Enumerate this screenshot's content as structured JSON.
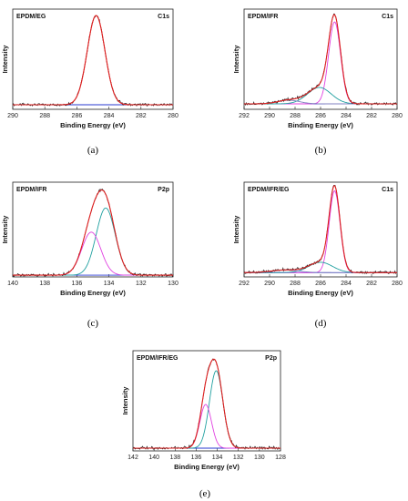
{
  "chart_data": [
    {
      "type": "line",
      "caption": "(a)",
      "sample": "EPDM/EG",
      "region": "C1s",
      "xlabel": "Binding Energy (eV)",
      "ylabel": "Intensity",
      "xlim": [
        290,
        280
      ],
      "xticks": [
        290,
        288,
        286,
        284,
        282,
        280
      ],
      "ylim": [
        0,
        1.1
      ],
      "background": 0.05,
      "series": [
        {
          "color": "#e02020",
          "role": "envelope"
        },
        {
          "color": "#1a1a1a",
          "role": "raw"
        },
        {
          "color": "#2a3ad0",
          "role": "background"
        }
      ],
      "peaks": [
        {
          "center": 284.8,
          "amp": 0.98,
          "fwhm": 1.3,
          "color": "#e02020"
        }
      ]
    },
    {
      "type": "line",
      "caption": "(b)",
      "sample": "EPDM/IFR",
      "region": "C1s",
      "xlabel": "Binding Energy (eV)",
      "ylabel": "Intensity",
      "xlim": [
        292,
        280
      ],
      "xticks": [
        292,
        290,
        288,
        286,
        284,
        282,
        280
      ],
      "ylim": [
        0,
        1.1
      ],
      "background": 0.06,
      "series": [
        {
          "color": "#e02020",
          "role": "envelope"
        },
        {
          "color": "#1a1a1a",
          "role": "raw"
        },
        {
          "color": "#2a3ad0",
          "role": "background"
        }
      ],
      "peaks": [
        {
          "center": 284.9,
          "amp": 0.9,
          "fwhm": 1.1,
          "color": "#e040e0"
        },
        {
          "center": 286.1,
          "amp": 0.18,
          "fwhm": 2.2,
          "color": "#20a0a0"
        },
        {
          "center": 288.5,
          "amp": 0.04,
          "fwhm": 2.0,
          "color": "#8080c0"
        }
      ]
    },
    {
      "type": "line",
      "caption": "(c)",
      "sample": "EPDM/IFR",
      "region": "P2p",
      "xlabel": "Binding Energy (eV)",
      "ylabel": "Intensity",
      "xlim": [
        140,
        130
      ],
      "xticks": [
        140,
        138,
        136,
        134,
        132,
        130
      ],
      "ylim": [
        0,
        1.1
      ],
      "background": 0.02,
      "series": [
        {
          "color": "#e02020",
          "role": "envelope"
        },
        {
          "color": "#1a1a1a",
          "role": "raw"
        },
        {
          "color": "#2a3ad0",
          "role": "background"
        }
      ],
      "peaks": [
        {
          "center": 134.2,
          "amp": 0.78,
          "fwhm": 1.4,
          "color": "#20a0a0"
        },
        {
          "center": 135.1,
          "amp": 0.5,
          "fwhm": 1.4,
          "color": "#e040e0"
        }
      ]
    },
    {
      "type": "line",
      "caption": "(d)",
      "sample": "EPDM/IFR/EG",
      "region": "C1s",
      "xlabel": "Binding Energy (eV)",
      "ylabel": "Intensity",
      "xlim": [
        292,
        280
      ],
      "xticks": [
        292,
        290,
        288,
        286,
        284,
        282,
        280
      ],
      "ylim": [
        0,
        1.1
      ],
      "background": 0.05,
      "series": [
        {
          "color": "#e02020",
          "role": "envelope"
        },
        {
          "color": "#1a1a1a",
          "role": "raw"
        },
        {
          "color": "#2a3ad0",
          "role": "background"
        }
      ],
      "peaks": [
        {
          "center": 284.9,
          "amp": 0.95,
          "fwhm": 1.0,
          "color": "#e040e0"
        },
        {
          "center": 286.0,
          "amp": 0.12,
          "fwhm": 2.2,
          "color": "#20a0a0"
        },
        {
          "center": 288.8,
          "amp": 0.03,
          "fwhm": 2.5,
          "color": "#8080c0"
        }
      ]
    },
    {
      "type": "line",
      "caption": "(e)",
      "sample": "EPDM/IFR/EG",
      "region": "P2p",
      "xlabel": "Binding Energy (eV)",
      "ylabel": "Intensity",
      "xlim": [
        142,
        128
      ],
      "xticks": [
        142,
        140,
        138,
        136,
        134,
        132,
        130,
        128
      ],
      "ylim": [
        0,
        1.1
      ],
      "background": 0.03,
      "series": [
        {
          "color": "#e02020",
          "role": "envelope"
        },
        {
          "color": "#1a1a1a",
          "role": "raw"
        },
        {
          "color": "#2a3ad0",
          "role": "background"
        }
      ],
      "peaks": [
        {
          "center": 134.1,
          "amp": 0.85,
          "fwhm": 1.5,
          "color": "#20a0a0"
        },
        {
          "center": 135.1,
          "amp": 0.48,
          "fwhm": 1.3,
          "color": "#e040e0"
        }
      ]
    }
  ]
}
